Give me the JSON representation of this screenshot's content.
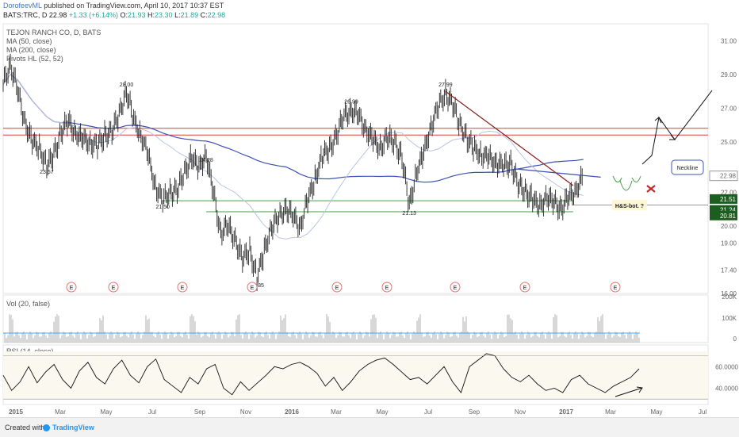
{
  "header": {
    "user": "DorofeevML",
    "published": "published on TradingView.com, April 10, 2017 10:37 EST"
  },
  "quote": {
    "symbol": "BATS:TRC, D",
    "close": "22.98",
    "change": "+1.33 (+6.14%)",
    "o_label": "O:",
    "o": "21.93",
    "h_label": "H:",
    "h": "23.30",
    "l_label": "L:",
    "l": "21.89",
    "c_label": "C:",
    "c": "22.98"
  },
  "legends": {
    "title": "TEJON RANCH CO, D, BATS",
    "ma50": "MA (50, close)",
    "ma200": "MA (200, close)",
    "pivots": "Pivots HL (52, 52)",
    "vol": "Vol (20, false)",
    "rsi": "RSI (14, close)"
  },
  "footer": {
    "created": "Created with",
    "brand": "TradingView"
  },
  "colors": {
    "price": "#222222",
    "ma50": "#b8c4e0",
    "ma200": "#3f51b5",
    "resistance": "#e53935",
    "support": "#43a047",
    "trendline": "#8b1a1a",
    "accent": "#2196f3",
    "volume": "#bdbdbd"
  },
  "chart_data": {
    "type": "line",
    "price_axis": {
      "ticks": [
        "31.00",
        "29.00",
        "27.00",
        "25.00",
        "22.00",
        "21.00",
        "20.00",
        "19.00",
        "17.40",
        "16.00"
      ],
      "ylim": [
        16.0,
        32.0
      ],
      "last": "22.98",
      "markers": [
        "21.51",
        "21.24",
        "20.81"
      ]
    },
    "time_axis": {
      "labels": [
        "2015",
        "Mar",
        "May",
        "Jul",
        "Sep",
        "Nov",
        "2016",
        "Mar",
        "May",
        "Jul",
        "Sep",
        "Nov",
        "2017",
        "Mar",
        "May",
        "Jul"
      ]
    },
    "price": {
      "x": [
        0,
        5,
        10,
        15,
        20,
        25,
        30,
        35,
        40,
        45,
        50,
        55,
        60,
        65,
        70,
        75,
        80,
        85,
        90,
        95,
        100,
        105,
        110,
        115,
        120,
        125,
        130,
        135,
        140,
        145,
        150,
        155,
        160,
        165,
        170,
        175,
        180,
        185,
        190,
        195,
        200,
        205,
        210,
        215,
        220,
        225,
        230,
        235,
        240,
        245,
        250,
        255,
        260,
        265,
        270,
        275,
        280,
        285,
        290,
        295,
        300,
        305,
        310,
        315,
        320,
        325,
        330,
        335,
        340,
        345,
        350,
        355,
        360,
        365,
        370,
        375,
        380,
        385,
        390,
        395,
        400
      ],
      "y": [
        28.4,
        29.6,
        28.0,
        26.2,
        25.0,
        24.6,
        23.6,
        24.2,
        25.6,
        26.2,
        25.5,
        25.1,
        25.0,
        24.7,
        25.4,
        25.6,
        26.6,
        28.0,
        26.3,
        25.4,
        24.1,
        22.4,
        21.5,
        22.0,
        22.1,
        23.2,
        24.1,
        23.4,
        24.3,
        21.9,
        19.6,
        20.0,
        19.2,
        18.0,
        18.6,
        16.9,
        18.5,
        20.0,
        20.4,
        21.1,
        20.5,
        20.0,
        21.5,
        22.8,
        24.2,
        24.5,
        25.5,
        26.5,
        26.9,
        26.5,
        25.8,
        25.1,
        24.6,
        25.3,
        24.9,
        24.1,
        21.2,
        23.2,
        24.3,
        26.0,
        27.0,
        27.9,
        27.2,
        26.0,
        25.1,
        24.6,
        24.2,
        24.0,
        23.8,
        23.5,
        23.8,
        22.4,
        22.1,
        21.6,
        21.1,
        21.8,
        21.3,
        21.1,
        21.7,
        22.1,
        22.98
      ]
    },
    "annotations": {
      "pivots": [
        {
          "label": "23.57",
          "x": 30,
          "y": 23.57
        },
        {
          "label": "28.00",
          "x": 85,
          "y": 28.0
        },
        {
          "label": "21.50",
          "x": 110,
          "y": 21.5
        },
        {
          "label": "24.28",
          "x": 140,
          "y": 24.28
        },
        {
          "label": "16.85",
          "x": 175,
          "y": 16.85
        },
        {
          "label": "26.99",
          "x": 240,
          "y": 26.99
        },
        {
          "label": "21.13",
          "x": 280,
          "y": 21.13
        },
        {
          "label": "27.99",
          "x": 305,
          "y": 27.99
        }
      ],
      "neckline": "Neckline",
      "pattern": "H&S-bot. ?",
      "earnings": [
        "E",
        "E",
        "E",
        "E",
        "E",
        "E",
        "E",
        "E",
        "E"
      ]
    },
    "volume": {
      "axis": [
        "200K",
        "100K",
        "0"
      ]
    },
    "rsi": {
      "axis": [
        "60.0000",
        "40.0000"
      ],
      "values": [
        52,
        38,
        46,
        60,
        45,
        55,
        62,
        48,
        40,
        56,
        64,
        50,
        44,
        58,
        66,
        52,
        45,
        60,
        67,
        48,
        42,
        36,
        50,
        44,
        58,
        62,
        40,
        34,
        46,
        38,
        45,
        52,
        60,
        58,
        62,
        64,
        60,
        54,
        42,
        50,
        38,
        46,
        56,
        62,
        66,
        68,
        62,
        55,
        48,
        50,
        44,
        52,
        60,
        46,
        36,
        60,
        66,
        72,
        70,
        58,
        50,
        46,
        52,
        44,
        38,
        40,
        36,
        48,
        52,
        44,
        40,
        36,
        42,
        46,
        50,
        58
      ]
    }
  }
}
